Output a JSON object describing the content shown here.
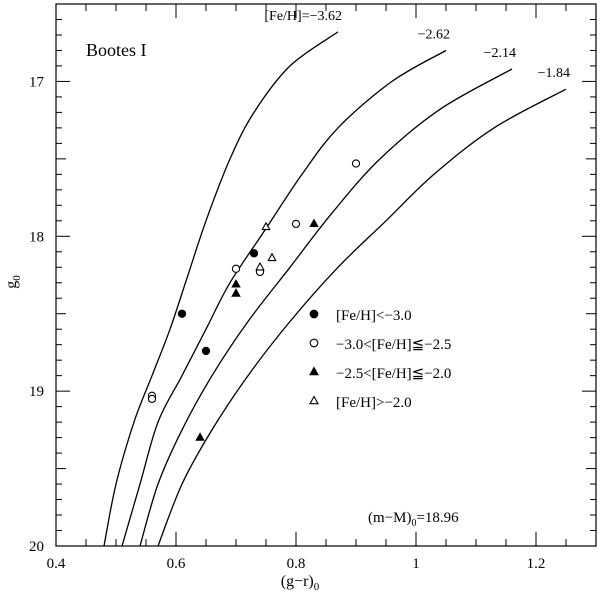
{
  "chart_data": {
    "type": "scatter",
    "panel_label": "Bootes I",
    "xlabel": "(g−r)",
    "xlabel_sub": "0",
    "ylabel": "g",
    "ylabel_sub": "0",
    "xlim": [
      0.4,
      1.3
    ],
    "ylim": [
      20,
      16.5
    ],
    "y_inverted": true,
    "x_ticks": [
      0.4,
      0.6,
      0.8,
      1,
      1.2
    ],
    "x_tick_labels": [
      "0.4",
      "0.6",
      "0.8",
      "1",
      "1.2"
    ],
    "y_ticks": [
      17,
      18,
      19,
      20
    ],
    "y_tick_labels": [
      "17",
      "18",
      "19",
      "20"
    ],
    "distance_modulus": {
      "label": "(m−M)",
      "sub": "0",
      "value": "=18.96"
    },
    "isochrones": [
      {
        "label": "[Fe/H]=−3.62",
        "points": [
          [
            0.48,
            20.0
          ],
          [
            0.5,
            19.6
          ],
          [
            0.53,
            19.2
          ],
          [
            0.56,
            18.9
          ],
          [
            0.59,
            18.6
          ],
          [
            0.62,
            18.25
          ],
          [
            0.65,
            17.9
          ],
          [
            0.69,
            17.5
          ],
          [
            0.73,
            17.2
          ],
          [
            0.79,
            16.9
          ],
          [
            0.87,
            16.68
          ]
        ]
      },
      {
        "label": "−2.62",
        "points": [
          [
            0.51,
            20.0
          ],
          [
            0.54,
            19.6
          ],
          [
            0.57,
            19.2
          ],
          [
            0.61,
            18.9
          ],
          [
            0.65,
            18.6
          ],
          [
            0.69,
            18.3
          ],
          [
            0.75,
            17.95
          ],
          [
            0.81,
            17.6
          ],
          [
            0.87,
            17.3
          ],
          [
            0.96,
            17.0
          ],
          [
            1.05,
            16.8
          ]
        ]
      },
      {
        "label": "−2.14",
        "points": [
          [
            0.54,
            20.0
          ],
          [
            0.57,
            19.6
          ],
          [
            0.61,
            19.25
          ],
          [
            0.66,
            18.9
          ],
          [
            0.72,
            18.55
          ],
          [
            0.79,
            18.2
          ],
          [
            0.86,
            17.85
          ],
          [
            0.94,
            17.5
          ],
          [
            1.04,
            17.18
          ],
          [
            1.16,
            16.92
          ]
        ]
      },
      {
        "label": "−1.84",
        "points": [
          [
            0.57,
            20.0
          ],
          [
            0.61,
            19.6
          ],
          [
            0.66,
            19.25
          ],
          [
            0.72,
            18.9
          ],
          [
            0.79,
            18.55
          ],
          [
            0.87,
            18.2
          ],
          [
            0.95,
            17.9
          ],
          [
            1.03,
            17.6
          ],
          [
            1.13,
            17.3
          ],
          [
            1.25,
            17.05
          ]
        ]
      }
    ],
    "series": [
      {
        "name": "[Fe/H]<−3.0",
        "marker": "filled-circle",
        "points": [
          [
            0.61,
            18.5
          ],
          [
            0.65,
            18.74
          ],
          [
            0.73,
            18.11
          ]
        ]
      },
      {
        "name": "−3.0<[Fe/H]≦−2.5",
        "marker": "open-circle",
        "points": [
          [
            0.56,
            19.03
          ],
          [
            0.56,
            19.05
          ],
          [
            0.7,
            18.21
          ],
          [
            0.74,
            18.23
          ],
          [
            0.8,
            17.92
          ],
          [
            0.9,
            17.53
          ]
        ]
      },
      {
        "name": "−2.5<[Fe/H]≦−2.0",
        "marker": "filled-triangle",
        "points": [
          [
            0.7,
            18.31
          ],
          [
            0.7,
            18.37
          ],
          [
            0.83,
            17.92
          ],
          [
            0.64,
            19.3
          ]
        ]
      },
      {
        "name": "[Fe/H]>−2.0",
        "marker": "open-triangle",
        "points": [
          [
            0.75,
            17.94
          ],
          [
            0.76,
            18.14
          ],
          [
            0.74,
            18.2
          ]
        ]
      }
    ],
    "legend_placement": "center-right",
    "grid": false
  }
}
